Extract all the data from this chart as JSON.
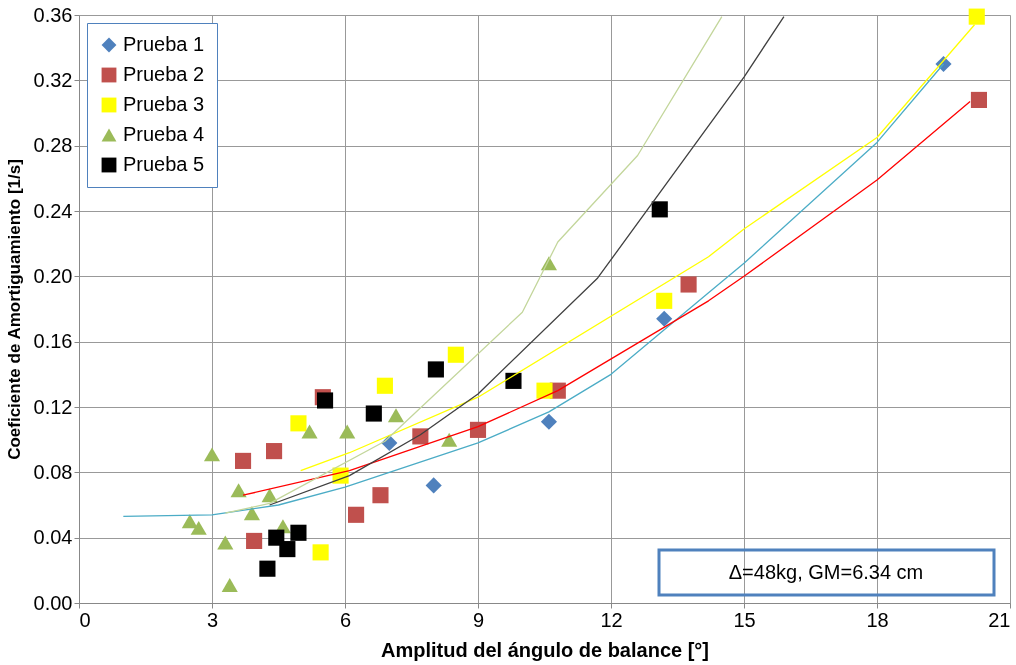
{
  "chart_data": {
    "type": "scatter",
    "xlabel": "Amplitud del ángulo de balance [°]",
    "ylabel": "Coeficiente de Amortiguamiento [1/s]",
    "xlim": [
      0,
      21
    ],
    "xticks": [
      0,
      3,
      6,
      9,
      12,
      15,
      18,
      21
    ],
    "ylim": [
      0,
      0.36
    ],
    "yticks": [
      {
        "value": 0,
        "label": "0.00"
      },
      {
        "value": 0.04,
        "label": "0.04"
      },
      {
        "value": 0.08,
        "label": "0.08"
      },
      {
        "value": 0.12,
        "label": "0.12"
      },
      {
        "value": 0.16,
        "label": "0.16"
      },
      {
        "value": 0.2,
        "label": "0.20"
      },
      {
        "value": 0.24,
        "label": "0.24"
      },
      {
        "value": 0.28,
        "label": "0.28"
      },
      {
        "value": 0.32,
        "label": "0.32"
      },
      {
        "value": 0.36,
        "label": "0.36"
      }
    ],
    "grid": true,
    "legend": "top left",
    "annotations": [
      "Δ=48kg, GM=6.34 cm"
    ],
    "series": [
      {
        "type": "line",
        "color": "#4bacc6",
        "x": [
          1,
          3,
          4.5,
          6,
          9,
          10.6,
          12,
          14.2,
          15,
          18,
          19.5
        ],
        "values": [
          0.053,
          0.054,
          0.06,
          0.071,
          0.098,
          0.117,
          0.14,
          0.19,
          0.208,
          0.282,
          0.33
        ]
      },
      {
        "type": "line",
        "color": "#ff0000",
        "x": [
          3.7,
          6.1,
          9,
          10.8,
          14.2,
          15,
          18,
          20.1
        ],
        "values": [
          0.066,
          0.081,
          0.108,
          0.13,
          0.185,
          0.2,
          0.259,
          0.307
        ]
      },
      {
        "type": "line",
        "color": "#ffff00",
        "x": [
          5,
          6.1,
          9,
          14.2,
          15,
          18,
          20.2
        ],
        "values": [
          0.081,
          0.092,
          0.126,
          0.212,
          0.229,
          0.285,
          0.354
        ]
      },
      {
        "type": "line",
        "color": "#c3d69b",
        "x": [
          3.3,
          4.3,
          6.9,
          10,
          10.8,
          12.6,
          14.5
        ],
        "values": [
          0.055,
          0.061,
          0.099,
          0.178,
          0.221,
          0.274,
          0.359
        ]
      },
      {
        "type": "line",
        "color": "#404040",
        "x": [
          4.3,
          6.1,
          7.7,
          9,
          11.7,
          15,
          15.9
        ],
        "values": [
          0.06,
          0.078,
          0.103,
          0.128,
          0.199,
          0.322,
          0.359
        ]
      },
      {
        "name": "Prueba 1",
        "color": "#4f81bd",
        "marker": "diamond",
        "x": [
          7.0,
          8.0,
          10.6,
          13.2,
          19.5
        ],
        "values": [
          0.098,
          0.072,
          0.111,
          0.174,
          0.33
        ]
      },
      {
        "name": "Prueba 2",
        "color": "#c0504d",
        "marker": "square",
        "x": [
          3.7,
          4.4,
          3.95,
          5.5,
          6.25,
          6.8,
          7.7,
          9.0,
          10.8,
          13.75,
          20.3
        ],
        "values": [
          0.087,
          0.093,
          0.038,
          0.126,
          0.054,
          0.066,
          0.102,
          0.106,
          0.13,
          0.195,
          0.308
        ]
      },
      {
        "name": "Prueba 3",
        "color": "#ffff00",
        "marker": "square",
        "x": [
          4.95,
          5.9,
          5.45,
          6.9,
          8.5,
          10.5,
          13.2,
          20.25
        ],
        "values": [
          0.11,
          0.078,
          0.031,
          0.133,
          0.152,
          0.13,
          0.185,
          0.359
        ]
      },
      {
        "name": "Prueba 4",
        "color": "#9bbb59",
        "marker": "triangle",
        "x": [
          2.5,
          2.7,
          3.0,
          3.3,
          3.4,
          3.6,
          3.9,
          4.3,
          4.6,
          5.2,
          6.05,
          7.15,
          8.35,
          10.6
        ],
        "values": [
          0.05,
          0.046,
          0.091,
          0.037,
          0.011,
          0.069,
          0.055,
          0.066,
          0.047,
          0.105,
          0.105,
          0.115,
          0.1,
          0.208
        ]
      },
      {
        "name": "Prueba 5",
        "color": "#000000",
        "marker": "square",
        "x": [
          4.25,
          4.45,
          4.7,
          4.95,
          5.55,
          6.65,
          8.05,
          9.8,
          13.1
        ],
        "values": [
          0.021,
          0.04,
          0.033,
          0.043,
          0.124,
          0.116,
          0.143,
          0.136,
          0.241
        ]
      }
    ]
  }
}
